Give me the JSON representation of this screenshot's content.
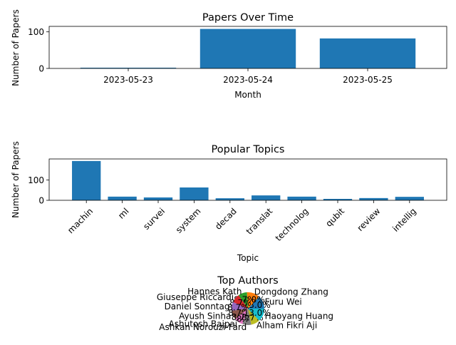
{
  "chart_data": [
    {
      "type": "bar",
      "title": "Papers Over Time",
      "xlabel": "Month",
      "ylabel": "Number of Papers",
      "categories": [
        "2023-05-23",
        "2023-05-24",
        "2023-05-25"
      ],
      "values": [
        2,
        108,
        82
      ],
      "ylim": [
        0,
        115
      ],
      "yticks": [
        0,
        100
      ],
      "color": "#1f77b4"
    },
    {
      "type": "bar",
      "title": "Popular Topics",
      "xlabel": "Topic",
      "ylabel": "Number of Papers",
      "categories": [
        "machin",
        "ml",
        "survei",
        "system",
        "decad",
        "translat",
        "technolog",
        "qubit",
        "review",
        "intellig"
      ],
      "values": [
        193,
        18,
        14,
        63,
        10,
        24,
        18,
        7,
        11,
        17
      ],
      "ylim": [
        0,
        203
      ],
      "yticks": [
        0,
        100
      ],
      "color": "#1f77b4"
    },
    {
      "type": "pie",
      "title": "Top Authors",
      "labels": [
        "Furu Wei",
        "Dongdong Zhang",
        "Hannes Kath",
        "Giuseppe Riccardi",
        "Daniel Sonntag",
        "Ayush Sinha",
        "Ashutosh Bajpai",
        "Ashkan Norouzi-Fard",
        "Alham Fikri Aji",
        "Haoyang Huang"
      ],
      "values": [
        13.0,
        13.0,
        8.7,
        8.7,
        8.7,
        8.7,
        8.7,
        8.7,
        8.7,
        13.0
      ],
      "autopct": [
        "13.0%",
        "13.0%",
        "8.7%",
        "8.7%",
        "8.7%",
        "8.7%",
        "8.7%",
        "8.7%",
        "8.7%",
        "13.0%"
      ],
      "colors": [
        "#1f77b4",
        "#ff7f0e",
        "#2ca02c",
        "#d62728",
        "#9467bd",
        "#8c564b",
        "#e377c2",
        "#7f7f7f",
        "#bcbd22",
        "#17becf"
      ]
    }
  ]
}
